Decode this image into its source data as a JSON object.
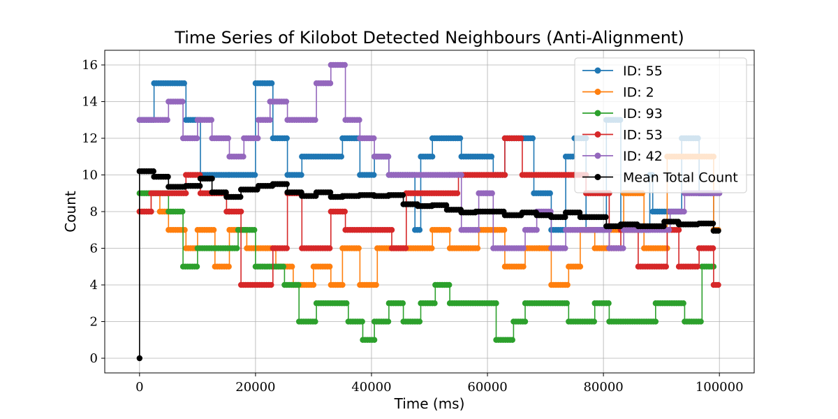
{
  "chart_data": {
    "type": "line",
    "title": "Time Series of Kilobot Detected Neighbours (Anti-Alignment)",
    "xlabel": "Time (ms)",
    "ylabel": "Count",
    "xlim": [
      -6000,
      106000
    ],
    "ylim": [
      -0.8,
      16.8
    ],
    "xticks": [
      0,
      20000,
      40000,
      60000,
      80000,
      100000
    ],
    "yticks": [
      0,
      2,
      4,
      6,
      8,
      10,
      12,
      14,
      16
    ],
    "grid": true,
    "legend_position": "top-right",
    "series": [
      {
        "name": "ID: 55",
        "color": "#1f77b4",
        "steps": [
          [
            0,
            13
          ],
          [
            2500,
            15
          ],
          [
            8000,
            13
          ],
          [
            10500,
            10
          ],
          [
            15500,
            10
          ],
          [
            20000,
            15
          ],
          [
            23000,
            12
          ],
          [
            25500,
            10
          ],
          [
            28000,
            11
          ],
          [
            35000,
            12
          ],
          [
            38000,
            10
          ],
          [
            40500,
            11
          ],
          [
            43000,
            10
          ],
          [
            47500,
            7
          ],
          [
            48500,
            11
          ],
          [
            50500,
            12
          ],
          [
            55500,
            11
          ],
          [
            61000,
            10
          ],
          [
            63000,
            12
          ],
          [
            68000,
            9
          ],
          [
            71000,
            7
          ],
          [
            73500,
            11
          ],
          [
            75000,
            12
          ],
          [
            77000,
            7
          ],
          [
            80500,
            13
          ],
          [
            83000,
            7
          ],
          [
            88000,
            10
          ],
          [
            88500,
            8
          ],
          [
            93500,
            12
          ],
          [
            96500,
            9
          ],
          [
            99000,
            7
          ]
        ],
        "end": 100000
      },
      {
        "name": "ID: 2",
        "color": "#ff7f0e",
        "steps": [
          [
            0,
            8
          ],
          [
            2000,
            9
          ],
          [
            3500,
            8
          ],
          [
            5000,
            7
          ],
          [
            8000,
            6
          ],
          [
            10000,
            7
          ],
          [
            13000,
            5
          ],
          [
            15500,
            7
          ],
          [
            18500,
            6
          ],
          [
            23500,
            5
          ],
          [
            26500,
            4
          ],
          [
            28000,
            4
          ],
          [
            30000,
            5
          ],
          [
            33000,
            4
          ],
          [
            35000,
            6
          ],
          [
            38000,
            4
          ],
          [
            41000,
            6
          ],
          [
            46000,
            6
          ],
          [
            50500,
            7
          ],
          [
            53500,
            6
          ],
          [
            58500,
            7
          ],
          [
            63000,
            5
          ],
          [
            66500,
            6
          ],
          [
            69000,
            6
          ],
          [
            71000,
            4
          ],
          [
            74000,
            5
          ],
          [
            76000,
            7
          ],
          [
            78500,
            6
          ],
          [
            81000,
            7
          ],
          [
            83500,
            9
          ],
          [
            87000,
            6
          ],
          [
            91000,
            11
          ],
          [
            99000,
            7
          ]
        ],
        "end": 100000
      },
      {
        "name": "ID: 93",
        "color": "#2ca02c",
        "steps": [
          [
            0,
            9
          ],
          [
            2000,
            9
          ],
          [
            5000,
            8
          ],
          [
            7500,
            5
          ],
          [
            10000,
            6
          ],
          [
            17000,
            7
          ],
          [
            20000,
            5
          ],
          [
            25000,
            4
          ],
          [
            27500,
            2
          ],
          [
            30500,
            3
          ],
          [
            36000,
            2
          ],
          [
            38500,
            1
          ],
          [
            40500,
            2
          ],
          [
            43000,
            3
          ],
          [
            45500,
            2
          ],
          [
            48500,
            3
          ],
          [
            51000,
            4
          ],
          [
            53500,
            3
          ],
          [
            61500,
            1
          ],
          [
            64500,
            2
          ],
          [
            66500,
            3
          ],
          [
            74000,
            2
          ],
          [
            78500,
            3
          ],
          [
            81000,
            2
          ],
          [
            89000,
            3
          ],
          [
            94000,
            2
          ],
          [
            97000,
            5
          ]
        ],
        "end": 99000
      },
      {
        "name": "ID: 53",
        "color": "#d62728",
        "steps": [
          [
            0,
            8
          ],
          [
            2000,
            9
          ],
          [
            8000,
            10
          ],
          [
            10500,
            9
          ],
          [
            12500,
            9
          ],
          [
            15500,
            8
          ],
          [
            15000,
            8
          ],
          [
            17500,
            4
          ],
          [
            23000,
            6
          ],
          [
            25500,
            9
          ],
          [
            27500,
            9
          ],
          [
            28000,
            6
          ],
          [
            33000,
            8
          ],
          [
            35500,
            7
          ],
          [
            43500,
            6
          ],
          [
            46000,
            9
          ],
          [
            55000,
            10
          ],
          [
            63000,
            12
          ],
          [
            66000,
            10
          ],
          [
            75000,
            10
          ],
          [
            77000,
            9
          ],
          [
            81000,
            6
          ],
          [
            83000,
            7
          ],
          [
            86000,
            5
          ],
          [
            91000,
            7
          ],
          [
            93000,
            5
          ],
          [
            96500,
            6
          ],
          [
            99000,
            4
          ]
        ],
        "end": 100000
      },
      {
        "name": "ID: 42",
        "color": "#9467bd",
        "steps": [
          [
            0,
            13
          ],
          [
            5000,
            14
          ],
          [
            7500,
            12
          ],
          [
            10000,
            13
          ],
          [
            12500,
            12
          ],
          [
            15500,
            11
          ],
          [
            18000,
            12
          ],
          [
            20500,
            13
          ],
          [
            22500,
            14
          ],
          [
            25500,
            13
          ],
          [
            30500,
            15
          ],
          [
            33000,
            16
          ],
          [
            35500,
            13
          ],
          [
            38000,
            12
          ],
          [
            40500,
            11
          ],
          [
            43000,
            10
          ],
          [
            53500,
            10
          ],
          [
            55500,
            7
          ],
          [
            58500,
            9
          ],
          [
            60000,
            9
          ],
          [
            61000,
            6
          ],
          [
            63000,
            6
          ],
          [
            66500,
            7
          ],
          [
            68500,
            8
          ],
          [
            71000,
            6
          ],
          [
            73500,
            7
          ],
          [
            79000,
            7
          ],
          [
            81000,
            6
          ],
          [
            83500,
            7
          ],
          [
            86500,
            7
          ],
          [
            91500,
            8
          ],
          [
            94000,
            9
          ]
        ],
        "end": 100000
      },
      {
        "name": "Mean Total Count",
        "color": "#000000",
        "steps": [
          [
            0,
            0
          ],
          [
            0,
            10.2
          ],
          [
            2500,
            9.9
          ],
          [
            5000,
            9.35
          ],
          [
            8000,
            9.4
          ],
          [
            10500,
            9.8
          ],
          [
            12500,
            9.05
          ],
          [
            15000,
            8.8
          ],
          [
            17500,
            9.2
          ],
          [
            20500,
            9.4
          ],
          [
            23000,
            9.5
          ],
          [
            25500,
            9.05
          ],
          [
            28000,
            8.85
          ],
          [
            30500,
            9.05
          ],
          [
            33000,
            8.8
          ],
          [
            35000,
            8.85
          ],
          [
            38000,
            8.9
          ],
          [
            40500,
            8.85
          ],
          [
            43000,
            8.9
          ],
          [
            45500,
            8.4
          ],
          [
            48000,
            8.3
          ],
          [
            50500,
            8.35
          ],
          [
            53000,
            8.1
          ],
          [
            55500,
            7.95
          ],
          [
            58000,
            8.0
          ],
          [
            63000,
            7.8
          ],
          [
            66000,
            7.95
          ],
          [
            68500,
            7.8
          ],
          [
            71000,
            7.7
          ],
          [
            73500,
            7.95
          ],
          [
            76000,
            7.7
          ],
          [
            80500,
            7.2
          ],
          [
            83000,
            7.3
          ],
          [
            86000,
            7.2
          ],
          [
            90500,
            7.45
          ],
          [
            93000,
            7.3
          ],
          [
            96500,
            7.35
          ],
          [
            99000,
            6.95
          ]
        ],
        "end": 100000
      }
    ]
  }
}
